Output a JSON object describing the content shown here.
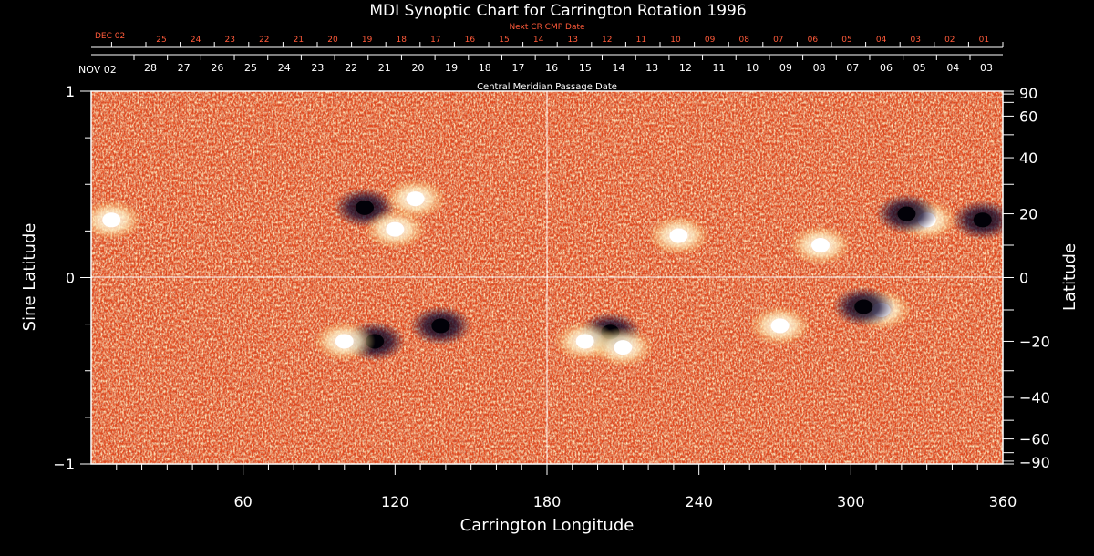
{
  "title": "MDI Synoptic Chart for Carrington Rotation 1996",
  "colors": {
    "background": "#000000",
    "map_base": "#e8401a",
    "positive_polarity": "#fff3c8",
    "negative_polarity": "#140a2e",
    "next_cr_text": "#ff5a3a",
    "axis": "#ffffff"
  },
  "top_axis": {
    "next_label": "Next CR CMP Date",
    "next_month": "DEC 02",
    "next_ticks": [
      "25",
      "24",
      "23",
      "22",
      "21",
      "20",
      "19",
      "18",
      "17",
      "16",
      "15",
      "14",
      "13",
      "12",
      "11",
      "10",
      "09",
      "08",
      "07",
      "06",
      "05",
      "04",
      "03",
      "02",
      "01"
    ],
    "cmp_label": "Central Meridian Passage Date",
    "cmp_month": "NOV 02",
    "cmp_ticks": [
      "28",
      "27",
      "26",
      "25",
      "24",
      "23",
      "22",
      "21",
      "20",
      "19",
      "18",
      "17",
      "16",
      "15",
      "14",
      "13",
      "12",
      "11",
      "10",
      "09",
      "08",
      "07",
      "06",
      "05",
      "04",
      "03"
    ]
  },
  "chart_data": {
    "type": "heatmap",
    "title": "MDI Synoptic Chart for Carrington Rotation 1996",
    "xlabel": "Carrington Longitude",
    "ylabel": "Sine Latitude",
    "y2label": "Latitude",
    "xlim": [
      0,
      360
    ],
    "ylim": [
      -1,
      1
    ],
    "x_ticks": [
      "60",
      "120",
      "180",
      "240",
      "300",
      "360"
    ],
    "x_tick_values": [
      60,
      120,
      180,
      240,
      300,
      360
    ],
    "y_ticks": [
      "1",
      "0",
      "−1"
    ],
    "y_tick_values": [
      1,
      0,
      -1
    ],
    "y2_ticks": [
      "90",
      "60",
      "40",
      "20",
      "0",
      "−20",
      "−40",
      "−60",
      "−90"
    ],
    "y2_tick_values": [
      90,
      60,
      40,
      20,
      0,
      -20,
      -40,
      -60,
      -90
    ],
    "grid": "crosshair at longitude 180 and sine latitude 0",
    "active_regions": [
      {
        "lon": 108,
        "lat": 22,
        "polarity": "negative"
      },
      {
        "lon": 128,
        "lat": 25,
        "polarity": "positive"
      },
      {
        "lon": 120,
        "lat": 15,
        "polarity": "positive"
      },
      {
        "lon": 112,
        "lat": -20,
        "polarity": "negative"
      },
      {
        "lon": 100,
        "lat": -20,
        "polarity": "positive"
      },
      {
        "lon": 138,
        "lat": -15,
        "polarity": "negative"
      },
      {
        "lon": 205,
        "lat": -17,
        "polarity": "negative"
      },
      {
        "lon": 195,
        "lat": -20,
        "polarity": "positive"
      },
      {
        "lon": 210,
        "lat": -22,
        "polarity": "positive"
      },
      {
        "lon": 272,
        "lat": -15,
        "polarity": "positive"
      },
      {
        "lon": 312,
        "lat": -10,
        "polarity": "positive"
      },
      {
        "lon": 305,
        "lat": -9,
        "polarity": "negative"
      },
      {
        "lon": 330,
        "lat": 18,
        "polarity": "positive"
      },
      {
        "lon": 322,
        "lat": 20,
        "polarity": "negative"
      },
      {
        "lon": 352,
        "lat": 18,
        "polarity": "negative"
      },
      {
        "lon": 232,
        "lat": 13,
        "polarity": "positive"
      },
      {
        "lon": 8,
        "lat": 18,
        "polarity": "positive"
      },
      {
        "lon": 288,
        "lat": 10,
        "polarity": "positive"
      }
    ]
  }
}
